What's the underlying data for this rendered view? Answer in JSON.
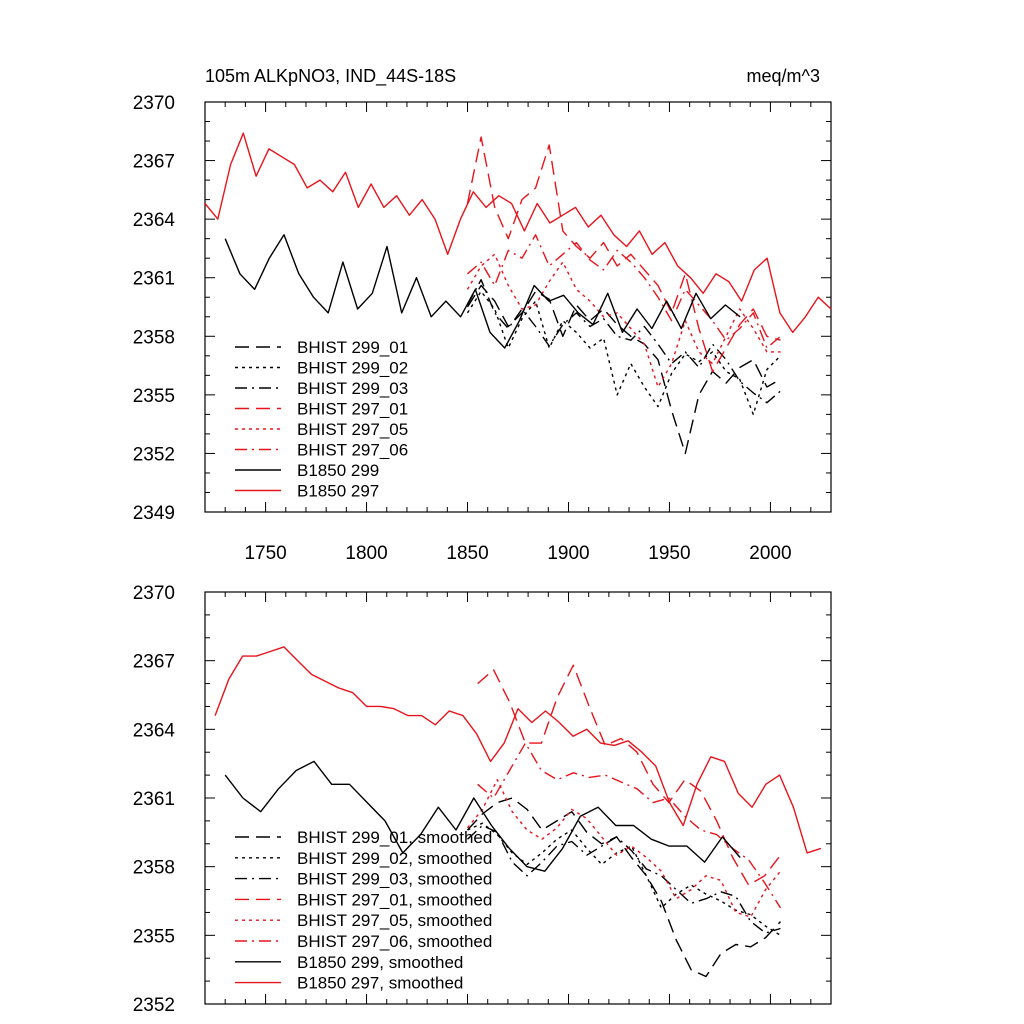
{
  "chart_data": [
    {
      "type": "line",
      "title_left": "105m ALKpNO3, IND_44S-18S",
      "title_right": "meq/m^3",
      "xlim": [
        1720,
        2030
      ],
      "ylim": [
        2349,
        2370
      ],
      "yticks": [
        2349,
        2352,
        2355,
        2358,
        2361,
        2364,
        2367,
        2370
      ],
      "xticks": [
        1750,
        1800,
        1850,
        1900,
        1950,
        2000
      ],
      "legend_position": "lower-left",
      "series": [
        {
          "name": "BHIST 299_01",
          "color": "#000000",
          "dash": "dashed",
          "x_range": [
            1850,
            2005
          ],
          "y": [
            2359.5,
            2360.6,
            2359.8,
            2358.5,
            2359.2,
            2360.3,
            2359.9,
            2358.0,
            2359.6,
            2358.8,
            2359.4,
            2358.6,
            2358.0,
            2357.6,
            2356.8,
            2354.2,
            2352.0,
            2355.0,
            2356.2,
            2355.6,
            2356.4,
            2356.8,
            2355.4,
            2355.8
          ]
        },
        {
          "name": "BHIST 299_02",
          "color": "#000000",
          "dash": "dotted",
          "x_range": [
            1850,
            2005
          ],
          "y": [
            2359.2,
            2360.3,
            2359.4,
            2357.4,
            2358.9,
            2359.8,
            2357.4,
            2358.8,
            2358.2,
            2357.4,
            2357.9,
            2355.0,
            2356.6,
            2355.4,
            2354.4,
            2356.1,
            2357.1,
            2356.7,
            2357.2,
            2356.2,
            2355.8,
            2354.0,
            2356.3,
            2357.0
          ]
        },
        {
          "name": "BHIST 299_03",
          "color": "#000000",
          "dash": "dashdot",
          "x_range": [
            1850,
            2005
          ],
          "y": [
            2359.6,
            2360.9,
            2359.2,
            2358.4,
            2359.4,
            2358.5,
            2357.5,
            2358.6,
            2359.2,
            2358.5,
            2358.9,
            2358.0,
            2357.8,
            2358.5,
            2357.6,
            2356.6,
            2357.2,
            2356.4,
            2357.6,
            2356.8,
            2355.7,
            2355.1,
            2354.6,
            2355.2
          ]
        },
        {
          "name": "BHIST 297_01",
          "color": "#e8141c",
          "dash": "dashed",
          "x_range": [
            1850,
            2005
          ],
          "y": [
            2364.8,
            2368.2,
            2364.6,
            2363.0,
            2365.0,
            2365.6,
            2367.8,
            2363.4,
            2362.6,
            2362.0,
            2362.8,
            2361.6,
            2362.2,
            2361.4,
            2360.6,
            2359.2,
            2361.2,
            2358.4,
            2356.2,
            2357.4,
            2358.6,
            2359.4,
            2358.0,
            2357.8
          ]
        },
        {
          "name": "BHIST 297_05",
          "color": "#e8141c",
          "dash": "dotted",
          "x_range": [
            1850,
            2005
          ],
          "y": [
            2360.4,
            2361.6,
            2362.2,
            2360.6,
            2359.4,
            2359.6,
            2360.8,
            2361.8,
            2360.4,
            2359.8,
            2359.0,
            2359.2,
            2358.4,
            2357.6,
            2355.4,
            2356.6,
            2358.8,
            2357.2,
            2356.6,
            2358.0,
            2359.4,
            2358.4,
            2357.2,
            2357.2
          ]
        },
        {
          "name": "BHIST 297_06",
          "color": "#e8141c",
          "dash": "dashdot",
          "x_range": [
            1850,
            2005
          ],
          "y": [
            2361.2,
            2361.8,
            2360.6,
            2362.4,
            2362.0,
            2363.2,
            2361.6,
            2362.2,
            2362.8,
            2361.9,
            2361.4,
            2362.4,
            2361.8,
            2361.0,
            2360.0,
            2358.8,
            2360.4,
            2359.6,
            2358.8,
            2357.8,
            2358.4,
            2359.2,
            2357.4,
            2358.0
          ]
        },
        {
          "name": "B1850 299",
          "color": "#000000",
          "dash": "solid",
          "x_range": [
            1730,
            1985
          ],
          "y": [
            2363.0,
            2361.2,
            2360.4,
            2362.0,
            2363.2,
            2361.2,
            2360.0,
            2359.2,
            2361.8,
            2359.4,
            2360.2,
            2362.6,
            2359.2,
            2361.0,
            2359.0,
            2359.8,
            2359.0,
            2360.4,
            2358.2,
            2357.4,
            2358.8,
            2360.6,
            2359.8,
            2360.1,
            2359.2,
            2358.6,
            2360.2,
            2358.2,
            2359.4,
            2358.4,
            2359.8,
            2358.4,
            2360.2,
            2358.9,
            2359.6,
            2359.0
          ]
        },
        {
          "name": "B1850 297",
          "color": "#e8141c",
          "dash": "solid",
          "x_range": [
            1720,
            2030
          ],
          "y": [
            2364.8,
            2364.0,
            2366.8,
            2368.4,
            2366.2,
            2367.6,
            2367.2,
            2366.8,
            2365.6,
            2366.0,
            2365.4,
            2366.4,
            2364.6,
            2365.8,
            2364.6,
            2365.2,
            2364.2,
            2365.0,
            2364.0,
            2362.2,
            2364.0,
            2365.4,
            2364.6,
            2365.2,
            2364.8,
            2363.4,
            2364.8,
            2363.8,
            2364.2,
            2364.6,
            2363.6,
            2364.2,
            2363.2,
            2362.6,
            2363.4,
            2362.2,
            2362.8,
            2361.6,
            2361.0,
            2360.2,
            2361.2,
            2360.8,
            2359.8,
            2361.4,
            2362.0,
            2359.2,
            2358.2,
            2359.0,
            2360.0,
            2359.4
          ]
        }
      ]
    },
    {
      "type": "line",
      "xlim": [
        1720,
        2030
      ],
      "ylim": [
        2352,
        2370
      ],
      "yticks": [
        2352,
        2355,
        2358,
        2361,
        2364,
        2367,
        2370
      ],
      "legend_position": "lower-left",
      "series": [
        {
          "name": "BHIST 299_01, smoothed",
          "color": "#000000",
          "dash": "dashed",
          "x_range": [
            1850,
            2005
          ],
          "y": [
            2359.6,
            2360.3,
            2360.8,
            2361.0,
            2360.5,
            2359.6,
            2360.0,
            2360.4,
            2359.5,
            2359.0,
            2359.3,
            2358.4,
            2357.6,
            2356.5,
            2354.8,
            2353.5,
            2353.2,
            2354.2,
            2354.6,
            2354.5,
            2354.9,
            2355.6
          ]
        },
        {
          "name": "BHIST 299_02, smoothed",
          "color": "#000000",
          "dash": "dotted",
          "x_range": [
            1850,
            2005
          ],
          "y": [
            2359.6,
            2359.9,
            2359.4,
            2358.6,
            2358.1,
            2358.6,
            2359.2,
            2359.6,
            2358.8,
            2358.1,
            2358.6,
            2358.9,
            2357.6,
            2356.2,
            2356.8,
            2357.2,
            2356.8,
            2356.5,
            2356.1,
            2355.9,
            2355.4,
            2355.0
          ]
        },
        {
          "name": "BHIST 299_03, smoothed",
          "color": "#000000",
          "dash": "dashdot",
          "x_range": [
            1850,
            2005
          ],
          "y": [
            2359.2,
            2359.8,
            2359.5,
            2358.2,
            2357.6,
            2358.2,
            2358.9,
            2359.1,
            2358.5,
            2358.9,
            2359.3,
            2358.7,
            2357.9,
            2357.6,
            2357.0,
            2356.4,
            2356.6,
            2356.9,
            2356.7,
            2355.6,
            2355.1,
            2355.3
          ]
        },
        {
          "name": "BHIST 297_01, smoothed",
          "color": "#e8141c",
          "dash": "dashed",
          "x_range": [
            1855,
            2005
          ],
          "y": [
            2366.0,
            2366.6,
            2365.2,
            2363.4,
            2363.4,
            2365.4,
            2366.8,
            2365.0,
            2363.3,
            2363.6,
            2363.0,
            2361.6,
            2360.8,
            2361.8,
            2361.3,
            2360.0,
            2358.4,
            2357.2,
            2357.6,
            2358.5
          ]
        },
        {
          "name": "BHIST 297_05, smoothed",
          "color": "#e8141c",
          "dash": "dotted",
          "x_range": [
            1850,
            2005
          ],
          "y": [
            2359.7,
            2360.5,
            2361.8,
            2360.4,
            2359.6,
            2359.2,
            2359.7,
            2360.5,
            2360.1,
            2359.3,
            2358.5,
            2358.9,
            2358.4,
            2357.8,
            2356.6,
            2357.0,
            2357.6,
            2357.4,
            2356.0,
            2355.8,
            2357.0,
            2357.8
          ]
        },
        {
          "name": "BHIST 297_06, smoothed",
          "color": "#e8141c",
          "dash": "dashdot",
          "x_range": [
            1855,
            2005
          ],
          "y": [
            2361.6,
            2361.0,
            2362.2,
            2363.4,
            2362.2,
            2361.8,
            2362.1,
            2361.9,
            2362.0,
            2361.7,
            2361.4,
            2360.8,
            2361.0,
            2360.2,
            2359.6,
            2359.4,
            2358.8,
            2358.3,
            2357.3,
            2356.2
          ]
        },
        {
          "name": "B1850 299, smoothed",
          "color": "#000000",
          "dash": "solid",
          "x_range": [
            1730,
            1985
          ],
          "y": [
            2362.0,
            2361.0,
            2360.4,
            2361.4,
            2362.2,
            2362.6,
            2361.6,
            2361.6,
            2360.8,
            2360.0,
            2358.6,
            2359.4,
            2360.6,
            2359.6,
            2361.0,
            2359.8,
            2358.8,
            2358.0,
            2357.8,
            2358.8,
            2360.2,
            2360.6,
            2359.8,
            2359.8,
            2359.2,
            2358.9,
            2358.9,
            2358.2,
            2359.3,
            2358.4
          ]
        },
        {
          "name": "B1850 297, smoothed",
          "color": "#e8141c",
          "dash": "solid",
          "x_range": [
            1725,
            2025
          ],
          "y": [
            2364.6,
            2366.2,
            2367.2,
            2367.2,
            2367.4,
            2367.6,
            2367.0,
            2366.4,
            2366.1,
            2365.8,
            2365.6,
            2365.0,
            2365.0,
            2364.9,
            2364.6,
            2364.6,
            2364.2,
            2364.8,
            2364.6,
            2363.8,
            2362.6,
            2363.4,
            2364.9,
            2364.3,
            2364.8,
            2364.3,
            2363.7,
            2364.0,
            2363.4,
            2363.3,
            2363.5,
            2363.0,
            2362.4,
            2360.8,
            2359.8,
            2361.6,
            2362.8,
            2362.6,
            2361.2,
            2360.6,
            2361.6,
            2362.0,
            2360.6,
            2358.6,
            2358.8
          ]
        }
      ]
    }
  ]
}
